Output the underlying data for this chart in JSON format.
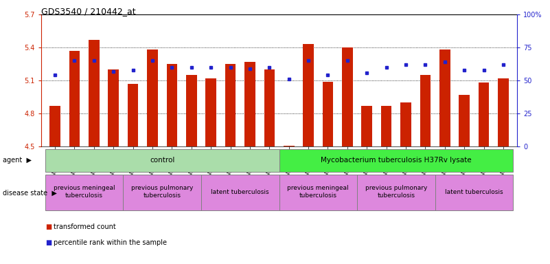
{
  "title": "GDS3540 / 210442_at",
  "samples": [
    "GSM280335",
    "GSM280341",
    "GSM280351",
    "GSM280353",
    "GSM280333",
    "GSM280339",
    "GSM280347",
    "GSM280349",
    "GSM280331",
    "GSM280337",
    "GSM280343",
    "GSM280345",
    "GSM280336",
    "GSM280342",
    "GSM280352",
    "GSM280354",
    "GSM280334",
    "GSM280340",
    "GSM280348",
    "GSM280350",
    "GSM280332",
    "GSM280338",
    "GSM280344",
    "GSM280346"
  ],
  "transformed_count": [
    4.87,
    5.37,
    5.47,
    5.2,
    5.07,
    5.38,
    5.25,
    5.15,
    5.12,
    5.25,
    5.27,
    5.2,
    4.51,
    5.43,
    5.09,
    5.4,
    4.87,
    4.87,
    4.9,
    5.15,
    5.38,
    4.97,
    5.08,
    5.12
  ],
  "percentile_rank": [
    54,
    65,
    65,
    57,
    58,
    65,
    60,
    60,
    60,
    60,
    59,
    60,
    51,
    65,
    54,
    65,
    56,
    60,
    62,
    62,
    64,
    58,
    58,
    62
  ],
  "ylim_left": [
    4.5,
    5.7
  ],
  "ylim_right": [
    0,
    100
  ],
  "bar_color": "#cc2200",
  "dot_color": "#2222cc",
  "agent_groups": [
    {
      "label": "control",
      "start": 0,
      "end": 12,
      "color": "#aaddaa"
    },
    {
      "label": "Mycobacterium tuberculosis H37Rv lysate",
      "start": 12,
      "end": 24,
      "color": "#44ee44"
    }
  ],
  "disease_groups": [
    {
      "label": "previous meningeal\ntuberculosis",
      "start": 0,
      "end": 4,
      "color": "#dd88dd"
    },
    {
      "label": "previous pulmonary\ntuberculosis",
      "start": 4,
      "end": 8,
      "color": "#dd88dd"
    },
    {
      "label": "latent tuberculosis",
      "start": 8,
      "end": 12,
      "color": "#dd88dd"
    },
    {
      "label": "previous meningeal\ntuberculosis",
      "start": 12,
      "end": 16,
      "color": "#dd88dd"
    },
    {
      "label": "previous pulmonary\ntuberculosis",
      "start": 16,
      "end": 20,
      "color": "#dd88dd"
    },
    {
      "label": "latent tuberculosis",
      "start": 20,
      "end": 24,
      "color": "#dd88dd"
    }
  ],
  "legend_items": [
    {
      "label": "transformed count",
      "color": "#cc2200"
    },
    {
      "label": "percentile rank within the sample",
      "color": "#2222cc"
    }
  ],
  "n_samples": 24,
  "yticks_left": [
    4.5,
    4.8,
    5.1,
    5.4,
    5.7
  ],
  "yticks_right": [
    0,
    25,
    50,
    75,
    100
  ],
  "ytick_labels_right": [
    "0",
    "25",
    "50",
    "75",
    "100%"
  ]
}
